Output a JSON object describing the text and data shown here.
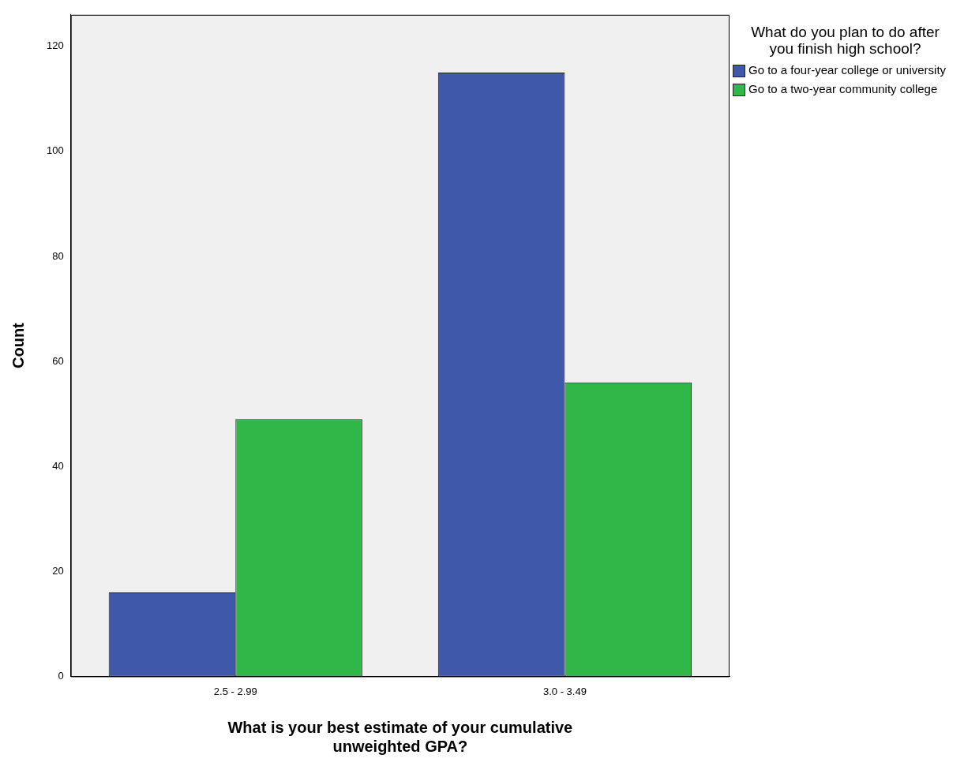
{
  "chart_data": {
    "type": "bar",
    "xlabel": "What is your best estimate of your cumulative unweighted GPA?",
    "ylabel": "Count",
    "legend_title": "What do you plan to do after you finish high school?",
    "categories": [
      "2.5 - 2.99",
      "3.0 - 3.49"
    ],
    "series": [
      {
        "name": "Go to a four-year college or university",
        "color": "#3f58aa",
        "values": [
          16,
          115
        ]
      },
      {
        "name": "Go to a two-year community college",
        "color": "#2fb847",
        "values": [
          49,
          56
        ]
      }
    ],
    "ylim": [
      0,
      126
    ],
    "yticks": [
      0,
      20,
      40,
      60,
      80,
      100,
      120
    ],
    "grid": false,
    "legend": "right"
  }
}
